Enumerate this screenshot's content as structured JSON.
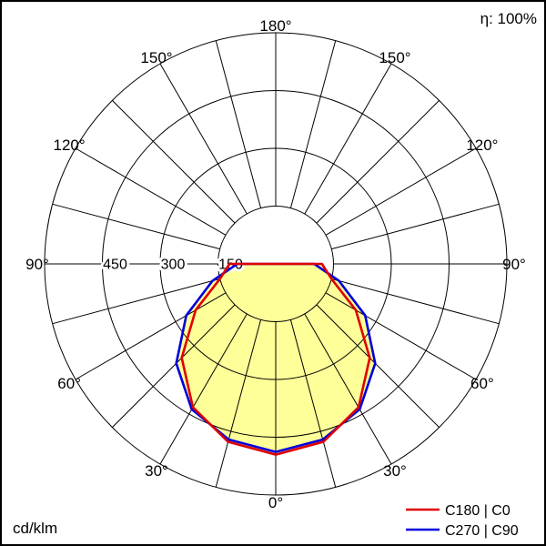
{
  "header": {
    "efficiency": "η: 100%"
  },
  "footer": {
    "units": "cd/klm"
  },
  "legend": [
    {
      "label": "C180 | C0",
      "color": "#e00000"
    },
    {
      "label": "C270 | C90",
      "color": "#0000dd"
    }
  ],
  "chart_data": {
    "type": "polar",
    "style": "photometric-intensity-diagram",
    "unit": "cd/klm",
    "efficiency": "η: 100%",
    "max_value": 600,
    "ring_values": [
      150,
      300,
      450,
      600
    ],
    "ring_labels": [
      "150",
      "300",
      "450"
    ],
    "spoke_step_deg": 15,
    "angle_labels": [
      {
        "deg": 0,
        "label": "0°"
      },
      {
        "deg": 30,
        "label": "30°"
      },
      {
        "deg": 60,
        "label": "60°"
      },
      {
        "deg": 90,
        "label": "90°"
      },
      {
        "deg": 120,
        "label": "120°"
      },
      {
        "deg": 150,
        "label": "150°"
      },
      {
        "deg": 180,
        "label": "180°"
      }
    ],
    "gamma_deg": [
      0,
      15,
      30,
      45,
      60,
      75,
      90,
      105
    ],
    "series": [
      {
        "name": "C180 | C0",
        "color": "#e00000",
        "values_cd_per_klm": [
          495,
          478,
          430,
          345,
          240,
          150,
          120,
          0
        ]
      },
      {
        "name": "C270 | C90",
        "color": "#0000dd",
        "values_cd_per_klm": [
          488,
          472,
          436,
          365,
          268,
          170,
          100,
          0
        ]
      }
    ],
    "fill_color": "#ffff99",
    "grid_color": "#000000",
    "legend_position": "bottom-right",
    "zero_angle_position": "bottom"
  }
}
